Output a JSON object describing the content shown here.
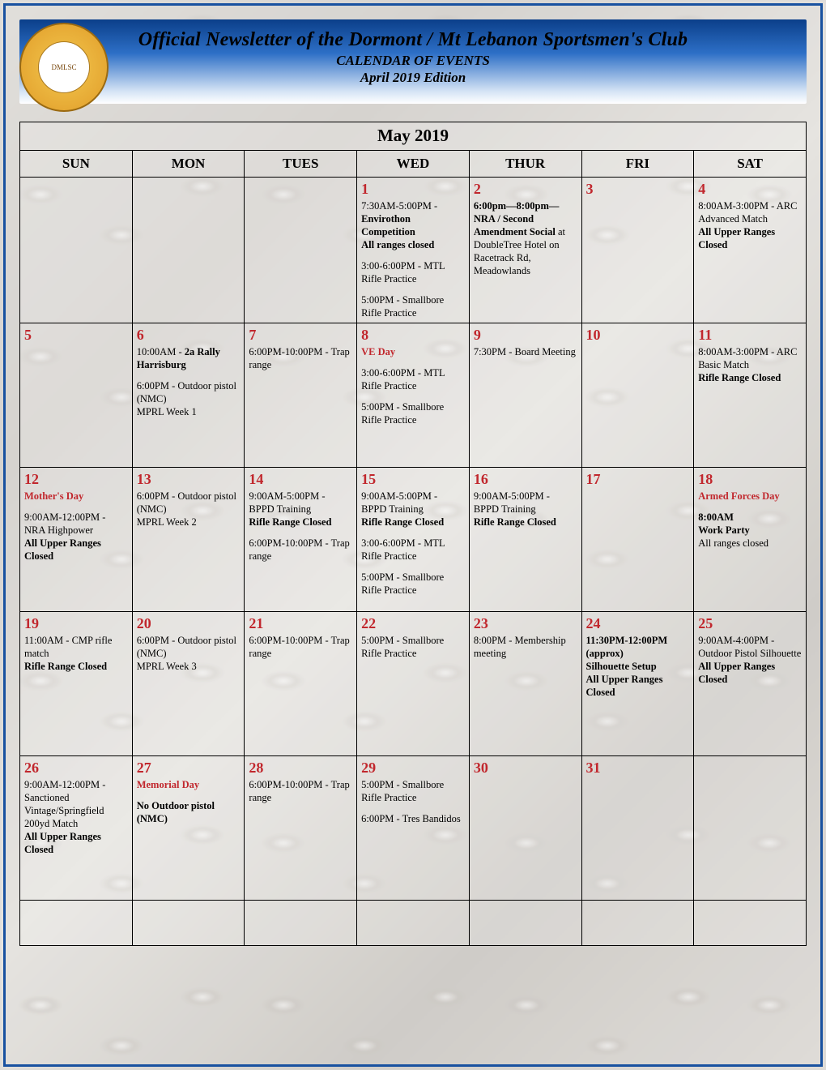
{
  "colors": {
    "page_border": "#1851a0",
    "header_gradient_top": "#0b3f8a",
    "header_gradient_mid": "#2d6fc6",
    "header_gradient_bottom": "#ffffff",
    "accent_red": "#c1272d",
    "table_border": "#000000",
    "background_base": "#d8d6d4"
  },
  "header": {
    "title": "Official Newsletter of the Dormont / Mt Lebanon Sportsmen's Club",
    "subtitle1": "CALENDAR OF EVENTS",
    "subtitle2": "April 2019 Edition",
    "logo_alt": "Dormont - Mt. Lebanon Sportsmen's Club · Pennsylvania"
  },
  "calendar": {
    "month_label": "May 2019",
    "dow": [
      "SUN",
      "MON",
      "TUES",
      "WED",
      "THUR",
      "FRI",
      "SAT"
    ],
    "weeks": [
      [
        {
          "num": "",
          "events": []
        },
        {
          "num": "",
          "events": []
        },
        {
          "num": "",
          "events": []
        },
        {
          "num": "1",
          "events": [
            {
              "html": "7:30AM-5:00PM - <b>Envirothon Competition</b>"
            },
            {
              "html": "<b>All ranges closed</b>"
            },
            {
              "gap": true,
              "html": "3:00-6:00PM - MTL Rifle Practice"
            },
            {
              "gap": true,
              "html": "5:00PM - Smallbore Rifle Practice"
            }
          ]
        },
        {
          "num": "2",
          "events": [
            {
              "html": "<b>6:00pm—8:00pm—NRA / Second Amendment Social</b> at DoubleTree Hotel on Racetrack Rd, Meadowlands"
            }
          ]
        },
        {
          "num": "3",
          "events": []
        },
        {
          "num": "4",
          "events": [
            {
              "html": "8:00AM-3:00PM - ARC Advanced Match"
            },
            {
              "html": "<b>All Upper Ranges Closed</b>"
            }
          ]
        }
      ],
      [
        {
          "num": "5",
          "events": []
        },
        {
          "num": "6",
          "events": [
            {
              "html": "10:00AM - <b>2a Rally Harrisburg</b>"
            },
            {
              "gap": true,
              "html": "6:00PM - Outdoor pistol (NMC)"
            },
            {
              "html": "MPRL Week 1"
            }
          ]
        },
        {
          "num": "7",
          "events": [
            {
              "html": "6:00PM-10:00PM - Trap range"
            }
          ]
        },
        {
          "num": "8",
          "events": [
            {
              "html": "<span class=\"red\">VE Day</span>"
            },
            {
              "gap": true,
              "html": "3:00-6:00PM - MTL Rifle Practice"
            },
            {
              "gap": true,
              "html": "5:00PM - Smallbore Rifle Practice"
            }
          ]
        },
        {
          "num": "9",
          "events": [
            {
              "html": "7:30PM - Board Meeting"
            }
          ]
        },
        {
          "num": "10",
          "events": []
        },
        {
          "num": "11",
          "events": [
            {
              "html": "8:00AM-3:00PM - ARC Basic Match"
            },
            {
              "html": "<b>Rifle Range Closed</b>"
            }
          ]
        }
      ],
      [
        {
          "num": "12",
          "events": [
            {
              "html": "<span class=\"red\">Mother's Day</span>"
            },
            {
              "gap": true,
              "html": "9:00AM-12:00PM - NRA Highpower"
            },
            {
              "html": "<b>All Upper Ranges Closed</b>"
            }
          ]
        },
        {
          "num": "13",
          "events": [
            {
              "html": "6:00PM - Outdoor pistol (NMC)"
            },
            {
              "html": "MPRL Week 2"
            }
          ]
        },
        {
          "num": "14",
          "events": [
            {
              "html": "9:00AM-5:00PM - BPPD Training"
            },
            {
              "html": "<b>Rifle Range Closed</b>"
            },
            {
              "gap": true,
              "html": "6:00PM-10:00PM - Trap range"
            }
          ]
        },
        {
          "num": "15",
          "events": [
            {
              "html": "9:00AM-5:00PM - BPPD Training"
            },
            {
              "html": "<b>Rifle Range Closed</b>"
            },
            {
              "gap": true,
              "html": "3:00-6:00PM - MTL Rifle Practice"
            },
            {
              "gap": true,
              "html": "5:00PM - Smallbore Rifle Practice"
            }
          ]
        },
        {
          "num": "16",
          "events": [
            {
              "html": "9:00AM-5:00PM - BPPD Training"
            },
            {
              "html": "<b>Rifle Range Closed</b>"
            }
          ]
        },
        {
          "num": "17",
          "events": []
        },
        {
          "num": "18",
          "events": [
            {
              "html": "<span class=\"red\">Armed Forces Day</span>"
            },
            {
              "gap": true,
              "html": "<b>8:00AM</b>"
            },
            {
              "html": "<b>Work Party</b>"
            },
            {
              "html": "All ranges closed"
            }
          ]
        }
      ],
      [
        {
          "num": "19",
          "events": [
            {
              "html": "11:00AM - CMP rifle match"
            },
            {
              "html": "<b>Rifle Range Closed</b>"
            }
          ]
        },
        {
          "num": "20",
          "events": [
            {
              "html": "6:00PM - Outdoor pistol (NMC)"
            },
            {
              "html": "MPRL Week 3"
            }
          ]
        },
        {
          "num": "21",
          "events": [
            {
              "html": "6:00PM-10:00PM - Trap range"
            }
          ]
        },
        {
          "num": "22",
          "events": [
            {
              "html": "5:00PM - Smallbore Rifle Practice"
            }
          ]
        },
        {
          "num": "23",
          "events": [
            {
              "html": "8:00PM - Membership meeting"
            }
          ]
        },
        {
          "num": "24",
          "events": [
            {
              "html": "<b>11:30PM-12:00PM (approx)</b>"
            },
            {
              "html": "<b>Silhouette Setup</b>"
            },
            {
              "html": "<b>All Upper Ranges Closed</b>"
            }
          ]
        },
        {
          "num": "25",
          "events": [
            {
              "html": "9:00AM-4:00PM - Outdoor Pistol Silhouette"
            },
            {
              "html": "<b>All Upper Ranges Closed</b>"
            }
          ]
        }
      ],
      [
        {
          "num": "26",
          "events": [
            {
              "html": "9:00AM-12:00PM - Sanctioned Vintage/Springfield 200yd Match"
            },
            {
              "html": "<b>All Upper Ranges Closed</b>"
            }
          ]
        },
        {
          "num": "27",
          "events": [
            {
              "html": "<span class=\"red\">Memorial Day</span>"
            },
            {
              "gap": true,
              "html": "<b>No Outdoor pistol (NMC)</b>"
            }
          ]
        },
        {
          "num": "28",
          "events": [
            {
              "html": "6:00PM-10:00PM - Trap range"
            }
          ]
        },
        {
          "num": "29",
          "events": [
            {
              "html": "5:00PM - Smallbore Rifle Practice"
            },
            {
              "gap": true,
              "html": "6:00PM - Tres Bandidos"
            }
          ]
        },
        {
          "num": "30",
          "events": []
        },
        {
          "num": "31",
          "events": []
        },
        {
          "num": "",
          "events": []
        }
      ],
      [
        {
          "num": "",
          "events": [],
          "short": true
        },
        {
          "num": "",
          "events": [],
          "short": true
        },
        {
          "num": "",
          "events": [],
          "short": true
        },
        {
          "num": "",
          "events": [],
          "short": true
        },
        {
          "num": "",
          "events": [],
          "short": true
        },
        {
          "num": "",
          "events": [],
          "short": true
        },
        {
          "num": "",
          "events": [],
          "short": true
        }
      ]
    ]
  }
}
